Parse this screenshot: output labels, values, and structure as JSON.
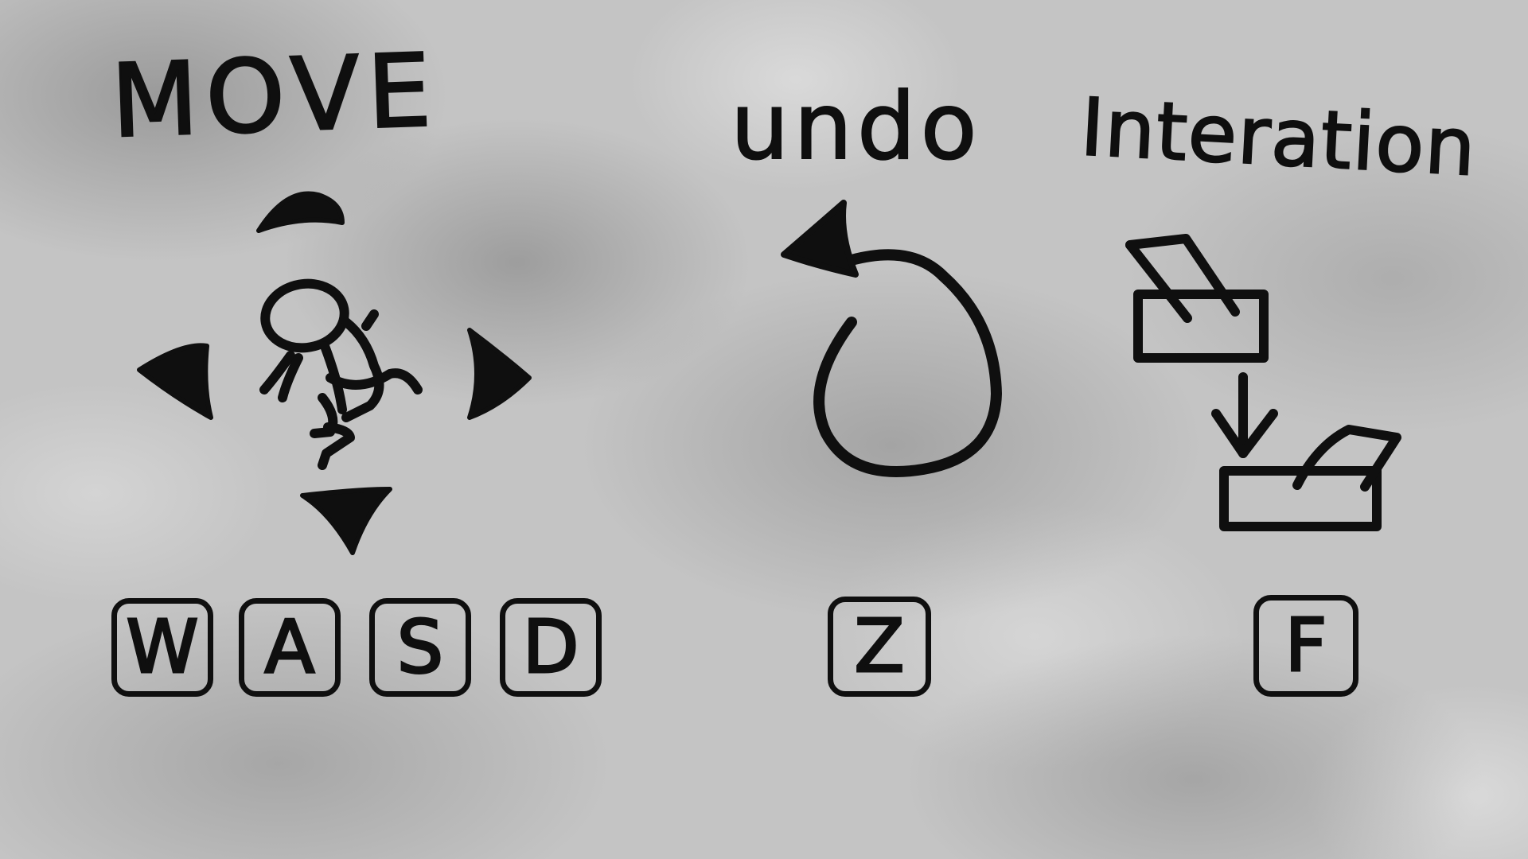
{
  "sections": {
    "move": {
      "title": "MOVE",
      "icon": "running-figure-icon",
      "keys": [
        "W",
        "A",
        "S",
        "D"
      ]
    },
    "undo": {
      "title": "undo",
      "icon": "undo-arrow-icon",
      "key": "Z"
    },
    "interaction": {
      "title": "Interation",
      "icon": "open-box-icon",
      "key": "F"
    }
  },
  "colors": {
    "ink": "#0f0f0f",
    "background": "#c4c4c4"
  }
}
